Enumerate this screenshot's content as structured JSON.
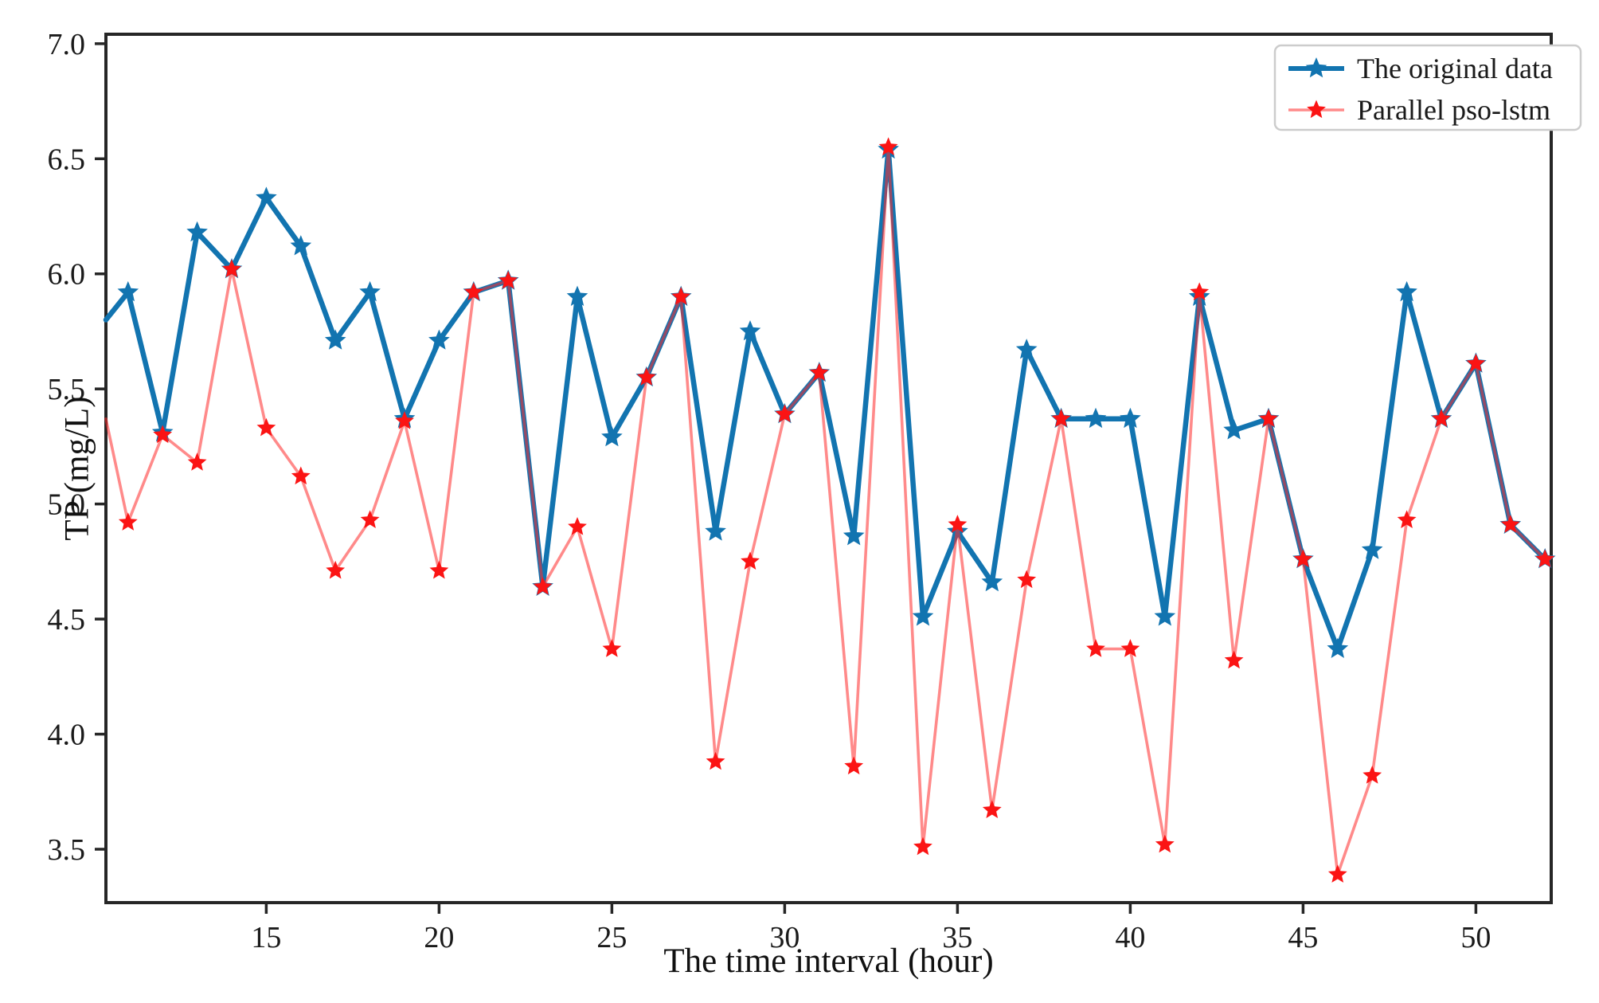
{
  "chart_data": {
    "type": "line",
    "title": "",
    "xlabel": "The time interval (hour)",
    "ylabel": "TP (mg/L)",
    "xlim": [
      10.36,
      52.18
    ],
    "ylim": [
      3.268,
      7.041
    ],
    "grid": false,
    "legend_position": "upper right",
    "x_ticks": [
      15,
      20,
      25,
      30,
      35,
      40,
      45,
      50
    ],
    "x_tick_labels": [
      "15",
      "20",
      "25",
      "30",
      "35",
      "40",
      "45",
      "50"
    ],
    "y_ticks": [
      7.0,
      6.5,
      6.0,
      5.5,
      5.0,
      4.5,
      4.0,
      3.5
    ],
    "y_tick_labels": [
      "7.0",
      "6.5",
      "6.0",
      "5.5",
      "5.0",
      "4.5",
      "4.0",
      "3.5"
    ],
    "x": [
      11,
      12,
      13,
      14,
      15,
      16,
      17,
      18,
      19,
      20,
      21,
      22,
      23,
      24,
      25,
      26,
      27,
      28,
      29,
      30,
      31,
      32,
      33,
      34,
      35,
      36,
      37,
      38,
      39,
      40,
      41,
      42,
      43,
      44,
      45,
      46,
      47,
      48,
      49,
      50,
      51,
      52
    ],
    "series": [
      {
        "name": "The original data",
        "color": "#1274b0",
        "line_width": 6.5,
        "marker": "star",
        "marker_size": 14,
        "edge_start": {
          "x": 10.36,
          "y": 5.8
        },
        "values": [
          5.92,
          5.31,
          6.18,
          6.02,
          6.33,
          6.12,
          5.71,
          5.92,
          5.37,
          5.71,
          5.92,
          5.97,
          4.64,
          5.9,
          5.29,
          5.55,
          5.9,
          4.88,
          5.75,
          5.39,
          5.57,
          4.86,
          6.54,
          4.51,
          4.88,
          4.66,
          5.67,
          5.37,
          5.37,
          5.37,
          4.51,
          5.9,
          5.32,
          5.37,
          4.76,
          4.37,
          4.8,
          5.92,
          5.37,
          5.61,
          4.91,
          4.76
        ]
      },
      {
        "name": "Parallel pso-lstm",
        "color": "#fb1414",
        "line_color_rgba": "rgba(255,42,42,0.55)",
        "line_width": 3.6,
        "marker": "star",
        "marker_size": 12.5,
        "edge_start": {
          "x": 10.36,
          "y": 5.37
        },
        "values": [
          4.92,
          5.3,
          5.18,
          6.02,
          5.33,
          5.12,
          4.71,
          4.93,
          5.36,
          4.71,
          5.92,
          5.97,
          4.64,
          4.9,
          4.37,
          5.55,
          5.9,
          3.88,
          4.75,
          5.39,
          5.57,
          3.86,
          6.55,
          3.51,
          4.91,
          3.67,
          4.67,
          5.37,
          4.37,
          4.37,
          3.52,
          5.92,
          4.32,
          5.37,
          4.76,
          3.39,
          3.82,
          4.93,
          5.37,
          5.61,
          4.91,
          4.76
        ]
      }
    ],
    "legend": [
      "The original data",
      "Parallel pso-lstm"
    ],
    "axis_color": "#262626",
    "background_color": "#ffffff"
  }
}
